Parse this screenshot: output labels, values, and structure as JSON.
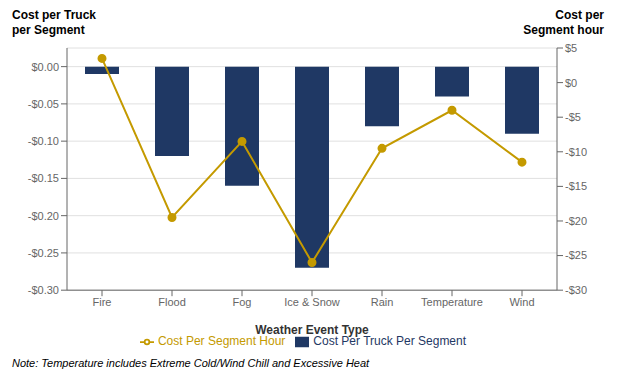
{
  "chart_data": {
    "type": "bar",
    "categories": [
      "Fire",
      "Flood",
      "Fog",
      "Ice & Snow",
      "Rain",
      "Temperature",
      "Wind"
    ],
    "series": [
      {
        "name": "Cost Per Truck Per Segment",
        "type": "bar",
        "color": "#1F3864",
        "values": [
          -0.01,
          -0.12,
          -0.16,
          -0.27,
          -0.08,
          -0.04,
          -0.09
        ]
      },
      {
        "name": "Cost Per Segment Hour",
        "type": "line",
        "axis": "y2",
        "color": "#C49A00",
        "marker": "circle",
        "values": [
          3.5,
          -19.5,
          -8.5,
          -26.0,
          -9.5,
          -4.0,
          -11.5
        ]
      }
    ],
    "xlabel": "Weather Event  Type",
    "ylabel": [
      "Cost per Truck",
      "per Segment"
    ],
    "y2label": [
      "Cost per",
      "Segment hour"
    ],
    "ylim": [
      -0.3,
      0.025
    ],
    "yticks": [
      {
        "value": 0.0,
        "label": "$0.00"
      },
      {
        "value": -0.05,
        "label": "-$0.05"
      },
      {
        "value": -0.1,
        "label": "-$0.10"
      },
      {
        "value": -0.15,
        "label": "-$0.15"
      },
      {
        "value": -0.2,
        "label": "-$0.20"
      },
      {
        "value": -0.25,
        "label": "-$0.25"
      },
      {
        "value": -0.3,
        "label": "-$0.30"
      }
    ],
    "y2lim": [
      -30,
      5
    ],
    "y2ticks": [
      {
        "value": 5,
        "label": "$5"
      },
      {
        "value": 0,
        "label": "$0"
      },
      {
        "value": -5,
        "label": "-$5"
      },
      {
        "value": -10,
        "label": "-$10"
      },
      {
        "value": -15,
        "label": "-$15"
      },
      {
        "value": -20,
        "label": "-$20"
      },
      {
        "value": -25,
        "label": "-$25"
      },
      {
        "value": -30,
        "label": "-$30"
      }
    ],
    "grid": true,
    "legend": "bottom",
    "annotations": [
      "Note: Temperature includes Extreme Cold/Wind Chill and Excessive Heat"
    ]
  }
}
